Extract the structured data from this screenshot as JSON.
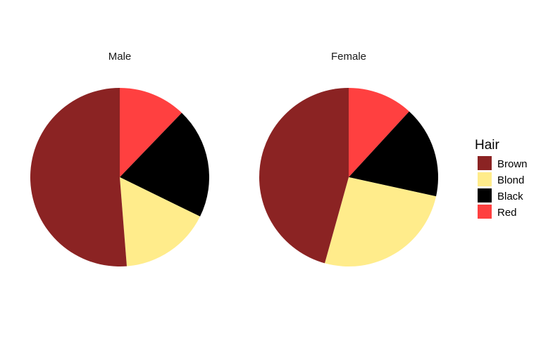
{
  "chart_data": [
    {
      "type": "pie",
      "title": "Male",
      "categories": [
        "Red",
        "Black",
        "Blond",
        "Brown"
      ],
      "values": [
        34,
        56,
        46,
        143
      ]
    },
    {
      "type": "pie",
      "title": "Female",
      "categories": [
        "Red",
        "Black",
        "Blond",
        "Brown"
      ],
      "values": [
        37,
        52,
        81,
        143
      ]
    }
  ],
  "legend": {
    "title": "Hair",
    "placement": "right",
    "items": [
      {
        "label": "Brown",
        "color": "#8B2323"
      },
      {
        "label": "Blond",
        "color": "#FFEC8B"
      },
      {
        "label": "Black",
        "color": "#000000"
      },
      {
        "label": "Red",
        "color": "#FF4040"
      }
    ]
  }
}
